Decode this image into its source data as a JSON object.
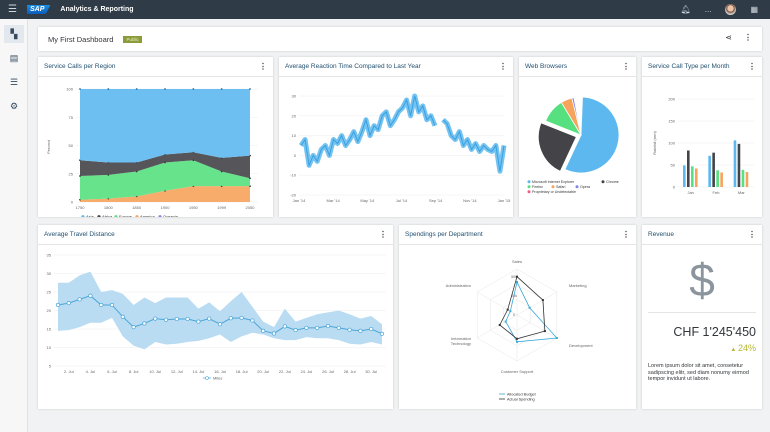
{
  "shell": {
    "menu_icon": "hamburger-icon",
    "logo": "SAP",
    "title": "Analytics & Reporting",
    "bell_icon": "bell-icon",
    "more": "...",
    "apps_icon": "grid-icon"
  },
  "sidebar": [
    {
      "icon": "dashboard-icon"
    },
    {
      "icon": "report-icon"
    },
    {
      "icon": "list-icon"
    },
    {
      "icon": "gear-icon"
    }
  ],
  "dashboard": {
    "title": "My First Dashboard",
    "badge": "Public",
    "share_icon": "share-icon"
  },
  "cards": {
    "c1": "Service Calls per Region",
    "c2": "Average Reaction Time Compared to Last Year",
    "c3": "Web Browsers",
    "c4": "Service Call Type per Month",
    "c5": "Average Travel Distance",
    "c6": "Spendings per Department",
    "c7": "Revenue"
  },
  "revenue": {
    "icon": "dollar-icon",
    "amount": "CHF 1'245'450",
    "change": "24%",
    "trend": "up",
    "text": "Lorem ipsum dolor sit amet, consetetur sadipscing elitr, sed diam nonumy eirmod tempor invidunt ut labore."
  },
  "colors": {
    "blue": "#5cb8ee",
    "dark": "#434348",
    "green": "#56e07f",
    "orange": "#f7a35c",
    "purple": "#8085e9",
    "pink": "#f15c80"
  },
  "chart_data": [
    {
      "type": "area",
      "stacking": "percent",
      "categories": [
        "1750",
        "1800",
        "1850",
        "1900",
        "1950",
        "1999",
        "2050"
      ],
      "ylabel": "Percent",
      "ylim": [
        0,
        100
      ],
      "yticks": [
        "0",
        "25",
        "50",
        "75",
        "100"
      ],
      "legend": "bottom",
      "series": [
        {
          "name": "Asia",
          "values": [
            63,
            65,
            65,
            58,
            56,
            61,
            59
          ]
        },
        {
          "name": "Africa",
          "values": [
            14,
            11,
            8,
            7,
            7,
            12,
            20
          ]
        },
        {
          "name": "Europe",
          "values": [
            21,
            21,
            22,
            25,
            23,
            13,
            7
          ]
        },
        {
          "name": "America",
          "values": [
            2,
            3,
            5,
            10,
            14,
            14,
            14
          ]
        },
        {
          "name": "Oceania",
          "values": [
            0,
            0,
            0,
            0,
            0,
            0,
            0
          ]
        }
      ]
    },
    {
      "type": "line",
      "xticks": [
        "Jan '14",
        "Mar '14",
        "May '14",
        "Jul '14",
        "Sep '14",
        "Nov '14",
        "Jan '15"
      ],
      "ylim": [
        -20,
        30
      ],
      "yticks": [
        "-20",
        "-10",
        "0",
        "10",
        "20",
        "30"
      ],
      "values": [
        5,
        8,
        -5,
        0,
        -3,
        3,
        5,
        0,
        8,
        6,
        10,
        5,
        8,
        12,
        7,
        12,
        18,
        10,
        15,
        13,
        20,
        22,
        15,
        18,
        22,
        24,
        28,
        20,
        30,
        22,
        25,
        18,
        20,
        15,
        null,
        18,
        16,
        10,
        8,
        12,
        5,
        8,
        3,
        6,
        2,
        5,
        3,
        2,
        5,
        -8,
        5
      ]
    },
    {
      "type": "pie",
      "legend": "bottom",
      "slices": [
        {
          "name": "Microsoft Internet Explorer",
          "value": 56.33
        },
        {
          "name": "Chrome",
          "value": 24.03,
          "sliced": true
        },
        {
          "name": "Firefox",
          "value": 10.38
        },
        {
          "name": "Safari",
          "value": 4.77
        },
        {
          "name": "Opera",
          "value": 0.91
        },
        {
          "name": "Proprietary or Undetectable",
          "value": 0.2
        }
      ]
    },
    {
      "type": "bar",
      "categories": [
        "Jan",
        "Feb",
        "Mar"
      ],
      "ylabel": "Rainfall (mm)",
      "ylim": [
        0,
        200
      ],
      "yticks": [
        "0",
        "50",
        "100",
        "150",
        "200"
      ],
      "series": [
        {
          "values": [
            49,
            71,
            106
          ]
        },
        {
          "values": [
            83,
            78,
            98
          ]
        },
        {
          "values": [
            47,
            38,
            39
          ]
        },
        {
          "values": [
            42,
            33,
            34
          ]
        }
      ]
    },
    {
      "type": "line",
      "xticks": [
        "2. Jul",
        "4. Jul",
        "6. Jul",
        "8. Jul",
        "10. Jul",
        "12. Jul",
        "14. Jul",
        "16. Jul",
        "18. Jul",
        "20. Jul",
        "22. Jul",
        "24. Jul",
        "26. Jul",
        "28. Jul",
        "30. Jul"
      ],
      "ylim": [
        5,
        35
      ],
      "yticks": [
        "5",
        "10",
        "15",
        "20",
        "25",
        "30",
        "35"
      ],
      "legend": "bottom",
      "series": [
        {
          "name": "Miles",
          "values": [
            21.5,
            22,
            23,
            24,
            21.5,
            21.5,
            18.3,
            15.5,
            16.5,
            17.8,
            17.5,
            17.7,
            17.7,
            17,
            17.8,
            16.3,
            17.9,
            18,
            17.3,
            14.5,
            13.8,
            15.7,
            14.7,
            15.3,
            15.3,
            15.8,
            15.3,
            14.8,
            14.5,
            15,
            13.7
          ]
        }
      ],
      "range_low": [
        14.5,
        14.7,
        15.5,
        16.7,
        16.7,
        18,
        13,
        10.5,
        9.5,
        11.5,
        10.8,
        11,
        11.5,
        11.8,
        12.5,
        13.5,
        11.5,
        13,
        14,
        13.5,
        12.5,
        12,
        12,
        12.8,
        12.5,
        12.5,
        12,
        11,
        10.8,
        11.5,
        10.8
      ],
      "range_high": [
        27.5,
        27.5,
        29.5,
        30.5,
        25,
        25.5,
        24.5,
        21.5,
        23.5,
        22,
        23.5,
        23.5,
        23.5,
        20.5,
        22.2,
        19.8,
        22.5,
        25,
        21,
        17,
        15.5,
        20.5,
        17,
        18,
        19,
        19.5,
        20,
        19,
        17.8,
        18.5,
        16.3
      ]
    },
    {
      "type": "radar",
      "categories": [
        "Sales",
        "Marketing",
        "Development",
        "Customer Support",
        "Information Technology",
        "Administration"
      ],
      "rticks": [
        "0",
        "25k",
        "50k"
      ],
      "rmax": 60000,
      "legend": "bottom",
      "series": [
        {
          "name": "Allocated Budget",
          "values": [
            43000,
            19000,
            60000,
            35000,
            17000,
            10000
          ]
        },
        {
          "name": "Actual Spending",
          "values": [
            50000,
            39000,
            42000,
            31000,
            26000,
            14000
          ]
        }
      ]
    }
  ]
}
